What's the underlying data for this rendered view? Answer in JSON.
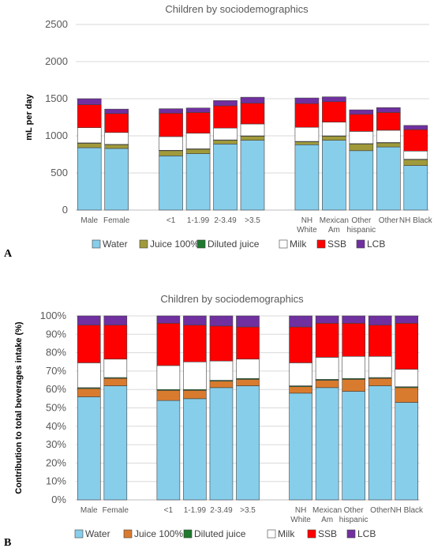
{
  "colors": {
    "Water": "#87CEEB",
    "Juice 100%": "#A09A3A",
    "Diluted juice": "#1E7A2E",
    "Milk": "#FFFFFF",
    "SSB": "#FF0000",
    "LCB": "#7030A0",
    "gridline": "#D9D9D9",
    "edge": "#404040"
  },
  "panelB_colors": {
    "Water": "#87CEEB",
    "Juice 100%": "#D97B2E",
    "Diluted juice": "#1E7A2E",
    "Milk": "#FFFFFF",
    "SSB": "#FF0000",
    "LCB": "#7030A0"
  },
  "chart_data": [
    {
      "panel": "A",
      "type": "bar",
      "stacked": true,
      "title": "Children by sociodemographics",
      "ylabel": "mL per day",
      "ylim": [
        0,
        2500
      ],
      "yticks": [
        "0",
        "500",
        "1000",
        "1500",
        "2000",
        "2500"
      ],
      "grid": true,
      "legend_position": "bottom",
      "categories": [
        [
          "Male"
        ],
        [
          "Female"
        ],
        [
          ""
        ],
        [
          "<1"
        ],
        [
          "1-1.99"
        ],
        [
          "2-3.49"
        ],
        [
          ">3.5"
        ],
        [
          ""
        ],
        [
          "NH",
          "White"
        ],
        [
          "Mexican",
          "Am"
        ],
        [
          "Other",
          "hispanic"
        ],
        [
          "Other"
        ],
        [
          "NH Black"
        ]
      ],
      "series": [
        {
          "name": "Water",
          "values": [
            840,
            830,
            null,
            730,
            760,
            890,
            940,
            null,
            880,
            940,
            800,
            850,
            600
          ]
        },
        {
          "name": "Juice 100%",
          "values": [
            60,
            50,
            null,
            70,
            60,
            50,
            55,
            null,
            40,
            55,
            90,
            55,
            80
          ]
        },
        {
          "name": "Diluted juice",
          "values": [
            5,
            5,
            null,
            5,
            5,
            5,
            5,
            null,
            5,
            5,
            5,
            5,
            5
          ]
        },
        {
          "name": "Milk",
          "values": [
            205,
            160,
            null,
            185,
            210,
            160,
            160,
            null,
            190,
            185,
            165,
            165,
            110
          ]
        },
        {
          "name": "SSB",
          "values": [
            310,
            255,
            null,
            315,
            280,
            300,
            280,
            null,
            320,
            275,
            230,
            240,
            290
          ]
        },
        {
          "name": "LCB",
          "values": [
            80,
            60,
            null,
            60,
            60,
            70,
            80,
            null,
            75,
            65,
            60,
            65,
            55
          ]
        }
      ]
    },
    {
      "panel": "B",
      "type": "bar",
      "stacked": true,
      "title": "Children by sociodemographics",
      "ylabel": "Contribution to total beverages intake (%)",
      "ylim": [
        0,
        100
      ],
      "yticks": [
        "0%",
        "10%",
        "20%",
        "30%",
        "40%",
        "50%",
        "60%",
        "70%",
        "80%",
        "90%",
        "100%"
      ],
      "grid": true,
      "legend_position": "bottom",
      "categories": [
        [
          "Male"
        ],
        [
          "Female"
        ],
        [
          ""
        ],
        [
          "<1"
        ],
        [
          "1-1.99"
        ],
        [
          "2-3.49"
        ],
        [
          ">3.5"
        ],
        [
          ""
        ],
        [
          "NH",
          "White"
        ],
        [
          "Mexican",
          "Am"
        ],
        [
          "Other",
          "hispanic"
        ],
        [
          "Other"
        ],
        [
          "NH Black"
        ]
      ],
      "series": [
        {
          "name": "Water",
          "values": [
            56,
            62,
            null,
            54,
            55,
            61,
            62,
            null,
            58,
            61,
            59,
            62,
            53
          ]
        },
        {
          "name": "Juice 100%",
          "values": [
            4.5,
            4,
            null,
            5.5,
            4.5,
            3.5,
            3.5,
            null,
            3.5,
            4,
            6.5,
            4,
            8
          ]
        },
        {
          "name": "Diluted juice",
          "values": [
            0.5,
            0.5,
            null,
            0.5,
            0.5,
            0.5,
            0.5,
            null,
            0.5,
            0.5,
            0.5,
            0.5,
            0.5
          ]
        },
        {
          "name": "Milk",
          "values": [
            13.5,
            10,
            null,
            13,
            15,
            10.5,
            10.5,
            null,
            12.5,
            12,
            12,
            11.5,
            9.5
          ]
        },
        {
          "name": "SSB",
          "values": [
            20.5,
            18.5,
            null,
            23,
            20,
            19,
            17.5,
            null,
            19.5,
            18.5,
            18,
            17,
            25
          ]
        },
        {
          "name": "LCB",
          "values": [
            5,
            5,
            null,
            4,
            5,
            5.5,
            6,
            null,
            6,
            4,
            4,
            5,
            4
          ]
        }
      ]
    }
  ],
  "legend": [
    "Water",
    "Juice 100%",
    "Diluted juice",
    "Milk",
    "SSB",
    "LCB"
  ],
  "panel_labels": [
    "A",
    "B"
  ]
}
